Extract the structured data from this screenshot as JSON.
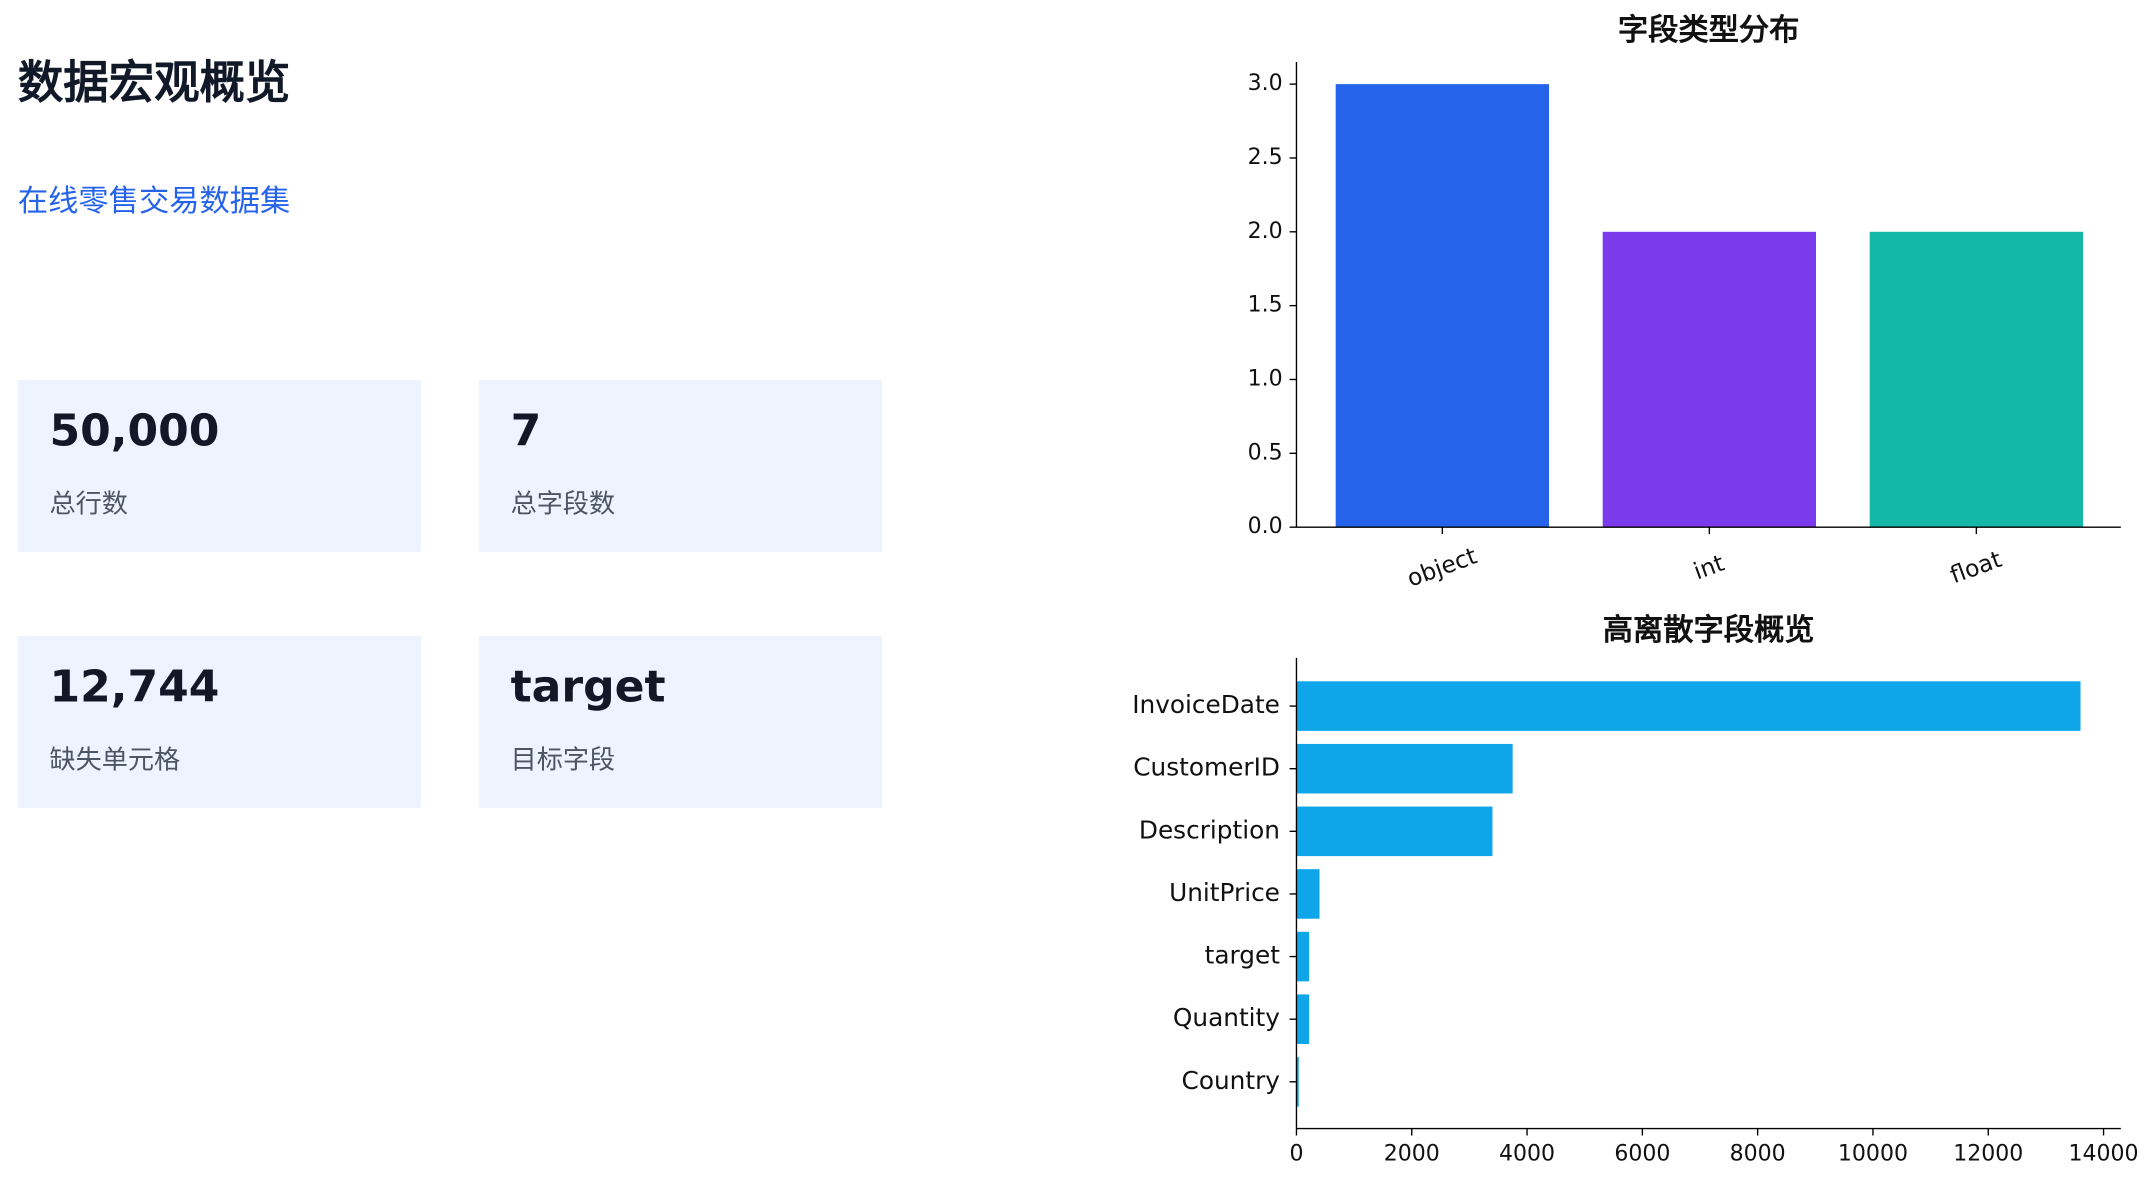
{
  "header": {
    "title": "数据宏观概览",
    "subtitle": "在线零售交易数据集"
  },
  "cards": [
    {
      "value": "50,000",
      "label": "总行数"
    },
    {
      "value": "7",
      "label": "总字段数"
    },
    {
      "value": "12,744",
      "label": "缺失单元格"
    },
    {
      "value": "target",
      "label": "目标字段"
    }
  ],
  "chart_data": [
    {
      "type": "bar",
      "title": "字段类型分布",
      "categories": [
        "object",
        "int",
        "float"
      ],
      "values": [
        3,
        2,
        2
      ],
      "colors": [
        "#2563eb",
        "#7c3aed",
        "#14b8a6"
      ],
      "ylim": [
        0,
        3.15
      ],
      "yticks": [
        {
          "value": 0,
          "label": "0.0"
        },
        0.5,
        {
          "value": 1,
          "label": "1.0"
        },
        1.5,
        {
          "value": 2,
          "label": "2.0"
        },
        2.5,
        {
          "value": 3,
          "label": "3.0"
        }
      ]
    },
    {
      "type": "barh",
      "title": "高离散字段概览",
      "categories": [
        "InvoiceDate",
        "CustomerID",
        "Description",
        "UnitPrice",
        "target",
        "Quantity",
        "Country"
      ],
      "values": [
        13600,
        3750,
        3400,
        400,
        220,
        220,
        40
      ],
      "color": "#0ea5e9",
      "xlim": [
        0,
        14300
      ],
      "xticks": [
        0,
        2000,
        4000,
        6000,
        8000,
        10000,
        12000,
        14000
      ]
    }
  ]
}
